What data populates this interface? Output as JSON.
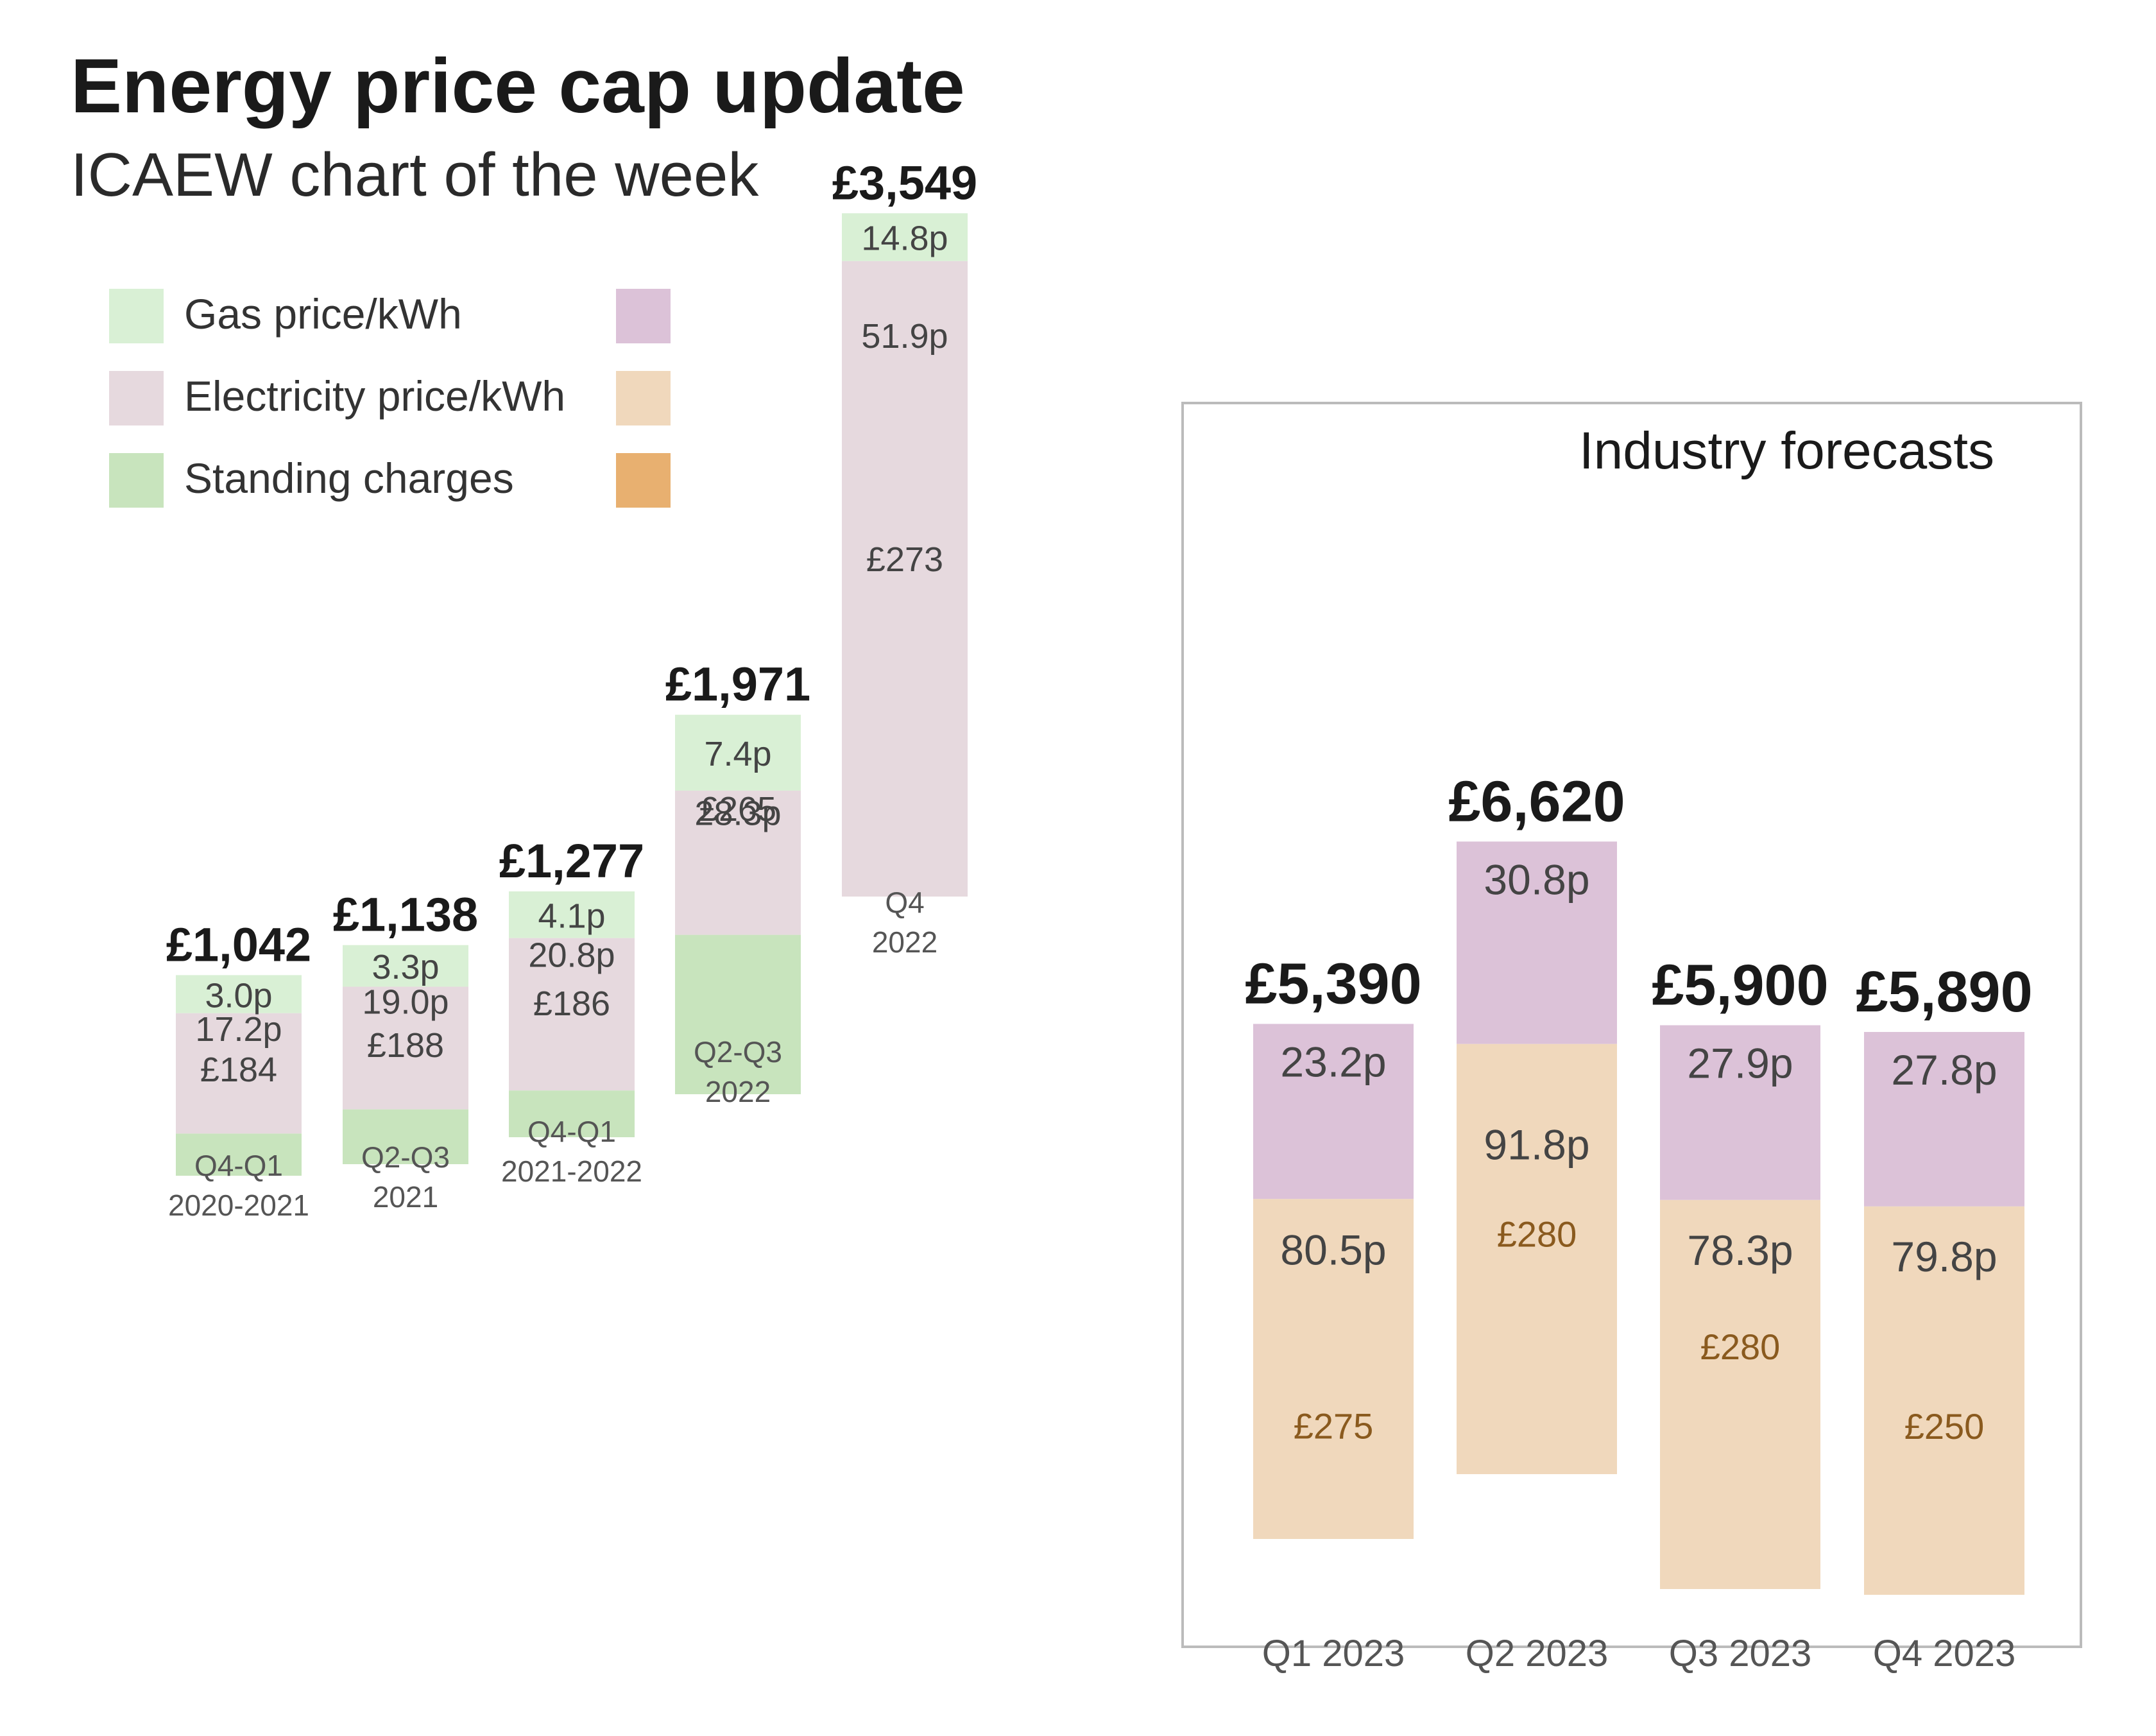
{
  "title": "Energy price cap update",
  "subtitle": "ICAEW chart of the week",
  "legend": {
    "items": [
      "Gas price/kWh",
      "Electricity price/kWh",
      "Standing charges"
    ]
  },
  "colors": {
    "hist_gas": "#d9f0d5",
    "hist_elec": "#e6d9de",
    "hist_sc": "#c8e4bd",
    "fc_gas": "#dcc2d8",
    "fc_elec": "#f0d8bc",
    "fc_sc": "#e8b070",
    "panel_border": "#bbbbbb"
  },
  "forecast_panel_title": "Industry forecasts",
  "chart_data": [
    {
      "type": "bar",
      "stacked": true,
      "categories": [
        [
          "Q4-Q1",
          "2020-2021"
        ],
        [
          "Q2-Q3",
          "2021"
        ],
        [
          "Q4-Q1",
          "2021-2022"
        ],
        [
          "Q2-Q3",
          "2022"
        ],
        [
          "Q4",
          "2022"
        ]
      ],
      "totals": [
        "£1,042",
        "£1,138",
        "£1,277",
        "£1,971",
        "£3,549"
      ],
      "total_values": [
        1042,
        1138,
        1277,
        1971,
        3549
      ],
      "series": [
        {
          "name": "Gas price/kWh",
          "labels": [
            "3.0p",
            "3.3p",
            "4.1p",
            "7.4p",
            "14.8p"
          ]
        },
        {
          "name": "Electricity price/kWh",
          "labels": [
            "17.2p",
            "19.0p",
            "20.8p",
            "28.3p",
            "51.9p"
          ]
        },
        {
          "name": "Standing charges",
          "labels": [
            "£184",
            "£188",
            "£186",
            "£265",
            "£273"
          ]
        }
      ]
    },
    {
      "type": "bar",
      "stacked": true,
      "title": "Industry forecasts",
      "categories": [
        "Q1 2023",
        "Q2 2023",
        "Q3 2023",
        "Q4 2023"
      ],
      "totals": [
        "£5,390",
        "£6,620",
        "£5,900",
        "£5,890"
      ],
      "total_values": [
        5390,
        6620,
        5900,
        5890
      ],
      "series": [
        {
          "name": "Gas price/kWh",
          "labels": [
            "23.2p",
            "30.8p",
            "27.9p",
            "27.8p"
          ]
        },
        {
          "name": "Electricity price/kWh",
          "labels": [
            "80.5p",
            "91.8p",
            "78.3p",
            "79.8p"
          ]
        },
        {
          "name": "Standing charges",
          "labels": [
            "£275",
            "£280",
            "£280",
            "£250"
          ]
        }
      ]
    }
  ]
}
